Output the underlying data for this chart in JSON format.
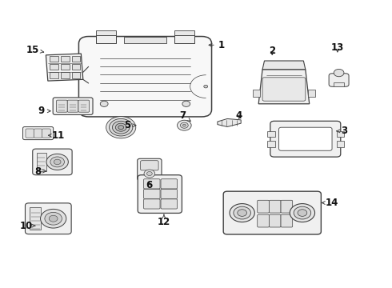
{
  "background_color": "#ffffff",
  "line_color": "#404040",
  "label_color": "#111111",
  "label_fontsize": 8.5,
  "label_positions": {
    "1": [
      0.565,
      0.845,
      0.525,
      0.845
    ],
    "2": [
      0.695,
      0.825,
      0.695,
      0.8
    ],
    "3": [
      0.88,
      0.545,
      0.858,
      0.545
    ],
    "4": [
      0.61,
      0.6,
      0.61,
      0.578
    ],
    "5": [
      0.325,
      0.565,
      0.348,
      0.565
    ],
    "6": [
      0.38,
      0.355,
      0.38,
      0.378
    ],
    "7": [
      0.465,
      0.6,
      0.488,
      0.578
    ],
    "8": [
      0.095,
      0.405,
      0.118,
      0.405
    ],
    "9": [
      0.105,
      0.615,
      0.13,
      0.615
    ],
    "10": [
      0.065,
      0.215,
      0.09,
      0.215
    ],
    "11": [
      0.148,
      0.53,
      0.12,
      0.53
    ],
    "12": [
      0.418,
      0.228,
      0.418,
      0.255
    ],
    "13": [
      0.862,
      0.835,
      0.862,
      0.81
    ],
    "14": [
      0.848,
      0.295,
      0.82,
      0.295
    ],
    "15": [
      0.082,
      0.828,
      0.112,
      0.82
    ]
  }
}
